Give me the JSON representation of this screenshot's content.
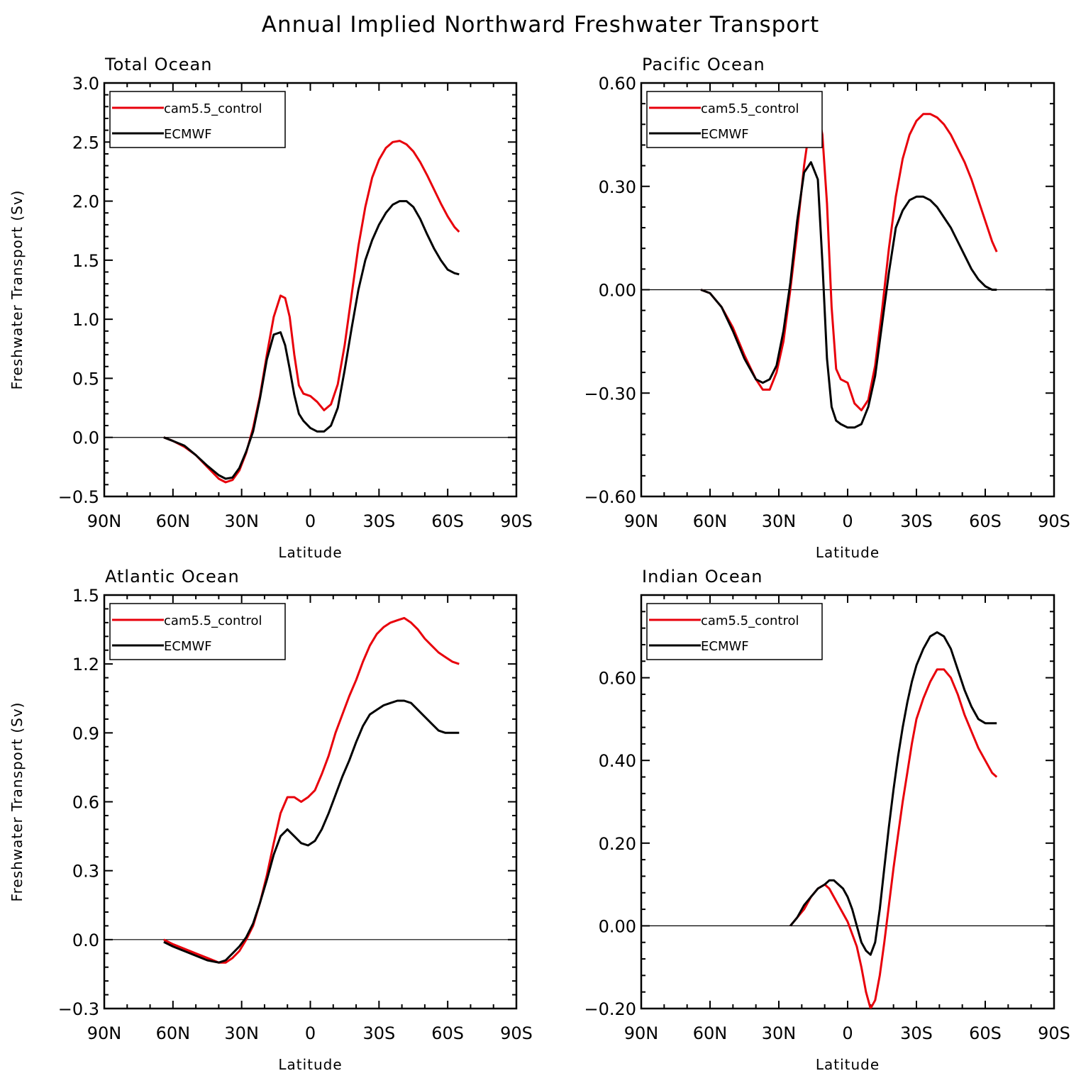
{
  "title": "Annual Implied Northward Freshwater Transport",
  "colors": {
    "model": "#e8000b",
    "reference": "#000000"
  },
  "legend": {
    "model": "cam5.5_control",
    "reference": "ECMWF"
  },
  "chart_data": [
    {
      "type": "line",
      "title": "Total Ocean",
      "xlabel": "Latitude",
      "ylabel": "Freshwater Transport (Sv)",
      "xlim": [
        -90,
        90
      ],
      "ylim": [
        -0.5,
        3.0
      ],
      "xticks": [
        "90N",
        "60N",
        "30N",
        "0",
        "30S",
        "60S",
        "90S"
      ],
      "yticks": [
        "-0.5",
        "0.0",
        "0.5",
        "1.0",
        "1.5",
        "2.0",
        "2.5",
        "3.0"
      ],
      "series": [
        {
          "name": "cam5.5_control",
          "x": [
            -64,
            -60,
            -55,
            -50,
            -45,
            -40,
            -37,
            -34,
            -31,
            -28,
            -25,
            -22,
            -19,
            -16,
            -13,
            -11,
            -9,
            -7,
            -5,
            -3,
            0,
            3,
            6,
            9,
            12,
            15,
            18,
            21,
            24,
            27,
            30,
            33,
            36,
            39,
            42,
            45,
            48,
            51,
            54,
            57,
            60,
            63,
            65
          ],
          "y": [
            0,
            -0.03,
            -0.08,
            -0.15,
            -0.25,
            -0.35,
            -0.38,
            -0.36,
            -0.28,
            -0.13,
            0.08,
            0.35,
            0.7,
            1.02,
            1.2,
            1.18,
            1.02,
            0.7,
            0.44,
            0.37,
            0.35,
            0.3,
            0.23,
            0.28,
            0.45,
            0.78,
            1.2,
            1.62,
            1.95,
            2.2,
            2.35,
            2.45,
            2.5,
            2.51,
            2.48,
            2.42,
            2.33,
            2.22,
            2.1,
            1.98,
            1.87,
            1.78,
            1.74
          ]
        },
        {
          "name": "ECMWF",
          "x": [
            -64,
            -60,
            -55,
            -50,
            -45,
            -40,
            -37,
            -34,
            -31,
            -28,
            -25,
            -22,
            -19,
            -16,
            -13,
            -11,
            -9,
            -7,
            -5,
            -3,
            0,
            3,
            6,
            9,
            12,
            15,
            18,
            21,
            24,
            27,
            30,
            33,
            36,
            39,
            42,
            45,
            48,
            51,
            54,
            57,
            60,
            63,
            65
          ],
          "y": [
            0,
            -0.03,
            -0.07,
            -0.15,
            -0.24,
            -0.32,
            -0.35,
            -0.34,
            -0.26,
            -0.12,
            0.05,
            0.33,
            0.66,
            0.87,
            0.89,
            0.78,
            0.58,
            0.36,
            0.2,
            0.14,
            0.08,
            0.05,
            0.05,
            0.1,
            0.25,
            0.57,
            0.92,
            1.25,
            1.5,
            1.67,
            1.8,
            1.9,
            1.97,
            2.0,
            2.0,
            1.95,
            1.85,
            1.72,
            1.6,
            1.5,
            1.42,
            1.39,
            1.38
          ]
        }
      ]
    },
    {
      "type": "line",
      "title": "Pacific Ocean",
      "xlabel": "Latitude",
      "ylabel": "",
      "xlim": [
        -90,
        90
      ],
      "ylim": [
        -0.6,
        0.6
      ],
      "xticks": [
        "90N",
        "60N",
        "30N",
        "0",
        "30S",
        "60S",
        "90S"
      ],
      "yticks": [
        "-0.60",
        "-0.30",
        "0.00",
        "0.30",
        "0.60"
      ],
      "series": [
        {
          "name": "cam5.5_control",
          "x": [
            -64,
            -60,
            -55,
            -50,
            -45,
            -40,
            -37,
            -34,
            -31,
            -28,
            -25,
            -22,
            -19,
            -16,
            -13,
            -11,
            -9,
            -7,
            -5,
            -3,
            0,
            3,
            6,
            9,
            12,
            15,
            18,
            21,
            24,
            27,
            30,
            33,
            36,
            39,
            42,
            45,
            48,
            51,
            54,
            57,
            60,
            63,
            65
          ],
          "y": [
            0,
            -0.01,
            -0.05,
            -0.11,
            -0.19,
            -0.26,
            -0.29,
            -0.29,
            -0.24,
            -0.15,
            0.0,
            0.17,
            0.36,
            0.5,
            0.52,
            0.45,
            0.25,
            -0.05,
            -0.23,
            -0.26,
            -0.27,
            -0.33,
            -0.35,
            -0.32,
            -0.22,
            -0.06,
            0.12,
            0.27,
            0.38,
            0.45,
            0.49,
            0.51,
            0.51,
            0.5,
            0.48,
            0.45,
            0.41,
            0.37,
            0.32,
            0.26,
            0.2,
            0.14,
            0.11
          ]
        },
        {
          "name": "ECMWF",
          "x": [
            -64,
            -60,
            -55,
            -50,
            -45,
            -40,
            -37,
            -34,
            -31,
            -28,
            -25,
            -22,
            -19,
            -16,
            -13,
            -11,
            -9,
            -7,
            -5,
            -3,
            0,
            3,
            6,
            9,
            12,
            15,
            18,
            21,
            24,
            27,
            30,
            33,
            36,
            39,
            42,
            45,
            48,
            51,
            54,
            57,
            60,
            63,
            65
          ],
          "y": [
            0,
            -0.01,
            -0.05,
            -0.12,
            -0.2,
            -0.26,
            -0.27,
            -0.26,
            -0.22,
            -0.12,
            0.02,
            0.2,
            0.34,
            0.37,
            0.32,
            0.08,
            -0.2,
            -0.34,
            -0.38,
            -0.39,
            -0.4,
            -0.4,
            -0.39,
            -0.34,
            -0.25,
            -0.1,
            0.05,
            0.18,
            0.23,
            0.26,
            0.27,
            0.27,
            0.26,
            0.24,
            0.21,
            0.18,
            0.14,
            0.1,
            0.06,
            0.03,
            0.01,
            0.0,
            0.0
          ]
        }
      ]
    },
    {
      "type": "line",
      "title": "Atlantic Ocean",
      "xlabel": "Latitude",
      "ylabel": "Freshwater Transport (Sv)",
      "xlim": [
        -90,
        90
      ],
      "ylim": [
        -0.3,
        1.5
      ],
      "xticks": [
        "90N",
        "60N",
        "30N",
        "0",
        "30S",
        "60S",
        "90S"
      ],
      "yticks": [
        "-0.3",
        "0.0",
        "0.3",
        "0.6",
        "0.9",
        "1.2",
        "1.5"
      ],
      "series": [
        {
          "name": "cam5.5_control",
          "x": [
            -64,
            -60,
            -55,
            -50,
            -45,
            -40,
            -37,
            -34,
            -31,
            -28,
            -25,
            -22,
            -19,
            -16,
            -13,
            -10,
            -7,
            -4,
            -1,
            2,
            5,
            8,
            11,
            14,
            17,
            20,
            23,
            26,
            29,
            32,
            35,
            38,
            41,
            44,
            47,
            50,
            53,
            56,
            59,
            62,
            65
          ],
          "y": [
            0,
            -0.02,
            -0.04,
            -0.06,
            -0.08,
            -0.1,
            -0.1,
            -0.08,
            -0.05,
            0.0,
            0.06,
            0.16,
            0.28,
            0.42,
            0.55,
            0.62,
            0.62,
            0.6,
            0.62,
            0.65,
            0.72,
            0.8,
            0.9,
            0.98,
            1.06,
            1.13,
            1.21,
            1.28,
            1.33,
            1.36,
            1.38,
            1.39,
            1.4,
            1.38,
            1.35,
            1.31,
            1.28,
            1.25,
            1.23,
            1.21,
            1.2
          ]
        },
        {
          "name": "ECMWF",
          "x": [
            -64,
            -60,
            -55,
            -50,
            -45,
            -40,
            -37,
            -34,
            -31,
            -28,
            -25,
            -22,
            -19,
            -16,
            -13,
            -10,
            -7,
            -4,
            -1,
            2,
            5,
            8,
            11,
            14,
            17,
            20,
            23,
            26,
            29,
            32,
            35,
            38,
            41,
            44,
            47,
            50,
            53,
            56,
            59,
            62,
            65
          ],
          "y": [
            -0.01,
            -0.03,
            -0.05,
            -0.07,
            -0.09,
            -0.1,
            -0.09,
            -0.06,
            -0.03,
            0.01,
            0.07,
            0.16,
            0.26,
            0.37,
            0.45,
            0.48,
            0.45,
            0.42,
            0.41,
            0.43,
            0.48,
            0.55,
            0.63,
            0.71,
            0.78,
            0.86,
            0.93,
            0.98,
            1.0,
            1.02,
            1.03,
            1.04,
            1.04,
            1.03,
            1.0,
            0.97,
            0.94,
            0.91,
            0.9,
            0.9,
            0.9
          ]
        }
      ]
    },
    {
      "type": "line",
      "title": "Indian Ocean",
      "xlabel": "Latitude",
      "ylabel": "",
      "xlim": [
        -90,
        90
      ],
      "ylim": [
        -0.2,
        0.8
      ],
      "xticks": [
        "90N",
        "60N",
        "30N",
        "0",
        "30S",
        "60S",
        "90S"
      ],
      "yticks": [
        "-0.20",
        "0.00",
        "0.20",
        "0.40",
        "0.60"
      ],
      "series": [
        {
          "name": "cam5.5_control",
          "x": [
            -25,
            -22,
            -19,
            -16,
            -13,
            -10,
            -8,
            -6,
            -4,
            -2,
            0,
            2,
            4,
            6,
            8,
            10,
            12,
            14,
            16,
            18,
            20,
            22,
            24,
            26,
            28,
            30,
            33,
            36,
            39,
            42,
            45,
            48,
            51,
            54,
            57,
            60,
            63,
            65
          ],
          "y": [
            0.0,
            0.02,
            0.04,
            0.07,
            0.09,
            0.1,
            0.09,
            0.07,
            0.05,
            0.03,
            0.01,
            -0.02,
            -0.05,
            -0.1,
            -0.16,
            -0.2,
            -0.18,
            -0.12,
            -0.04,
            0.05,
            0.14,
            0.22,
            0.3,
            0.37,
            0.44,
            0.5,
            0.55,
            0.59,
            0.62,
            0.62,
            0.6,
            0.56,
            0.51,
            0.47,
            0.43,
            0.4,
            0.37,
            0.36
          ]
        },
        {
          "name": "ECMWF",
          "x": [
            -25,
            -22,
            -19,
            -16,
            -13,
            -10,
            -8,
            -6,
            -4,
            -2,
            0,
            2,
            4,
            6,
            8,
            10,
            12,
            14,
            16,
            18,
            20,
            22,
            24,
            26,
            28,
            30,
            33,
            36,
            39,
            42,
            45,
            48,
            51,
            54,
            57,
            60,
            63,
            65
          ],
          "y": [
            0.0,
            0.02,
            0.05,
            0.07,
            0.09,
            0.1,
            0.11,
            0.11,
            0.1,
            0.09,
            0.07,
            0.04,
            0.0,
            -0.04,
            -0.06,
            -0.07,
            -0.04,
            0.04,
            0.14,
            0.24,
            0.33,
            0.41,
            0.48,
            0.54,
            0.59,
            0.63,
            0.67,
            0.7,
            0.71,
            0.7,
            0.67,
            0.62,
            0.57,
            0.53,
            0.5,
            0.49,
            0.49,
            0.49
          ]
        }
      ]
    }
  ]
}
